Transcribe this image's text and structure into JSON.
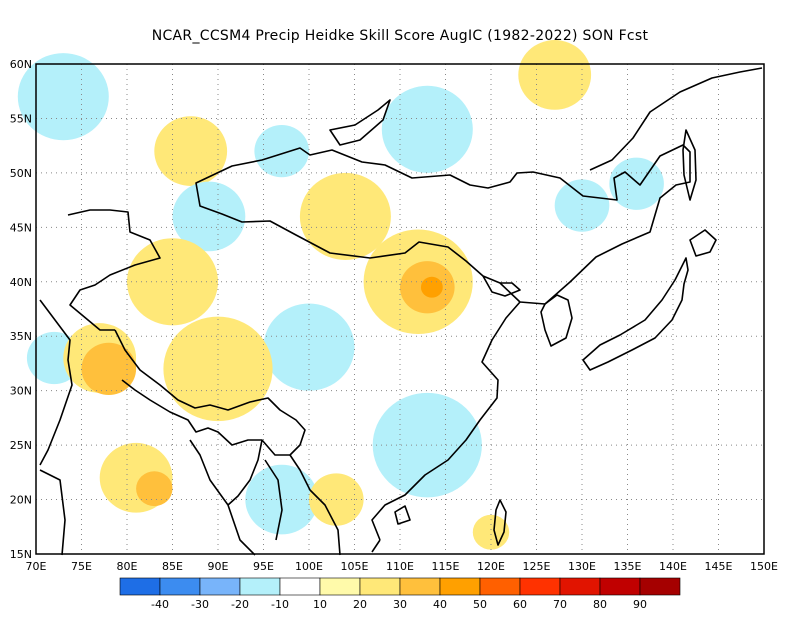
{
  "title": "NCAR_CCSM4 Precip Heidke Skill Score AugIC (1982-2022) SON Fcst",
  "map": {
    "lon_range": [
      70,
      150
    ],
    "lat_range": [
      15,
      60
    ],
    "lon_ticks": [
      "70E",
      "75E",
      "80E",
      "85E",
      "90E",
      "95E",
      "100E",
      "105E",
      "110E",
      "115E",
      "120E",
      "125E",
      "130E",
      "135E",
      "140E",
      "145E",
      "150E"
    ],
    "lat_ticks": [
      "60N",
      "55N",
      "50N",
      "45N",
      "40N",
      "35N",
      "30N",
      "25N",
      "20N",
      "15N"
    ],
    "gridlines": "dotted",
    "regions": [
      {
        "lon": 74,
        "lat": 56,
        "r": 3,
        "level": -20
      },
      {
        "lon": 73,
        "lat": 57,
        "r": 5,
        "level": -10
      },
      {
        "lon": 87,
        "lat": 52,
        "r": 4,
        "level": 20
      },
      {
        "lon": 97,
        "lat": 52,
        "r": 3,
        "level": -10
      },
      {
        "lon": 113,
        "lat": 55,
        "r": 3,
        "level": -20
      },
      {
        "lon": 113,
        "lat": 54,
        "r": 5,
        "level": -10
      },
      {
        "lon": 127,
        "lat": 59,
        "r": 4,
        "level": 20
      },
      {
        "lon": 130,
        "lat": 47,
        "r": 3,
        "level": -10
      },
      {
        "lon": 89,
        "lat": 46,
        "r": 4,
        "level": -10
      },
      {
        "lon": 104,
        "lat": 46,
        "r": 5,
        "level": 20
      },
      {
        "lon": 112,
        "lat": 40,
        "r": 6,
        "level": 20
      },
      {
        "lon": 113,
        "lat": 39.5,
        "r": 3,
        "level": 30
      },
      {
        "lon": 113.5,
        "lat": 39.5,
        "r": 1.2,
        "level": 40
      },
      {
        "lon": 85,
        "lat": 40,
        "r": 5,
        "level": 20
      },
      {
        "lon": 101,
        "lat": 34,
        "r": 3,
        "level": -20
      },
      {
        "lon": 100,
        "lat": 34,
        "r": 5,
        "level": -10
      },
      {
        "lon": 72,
        "lat": 33,
        "r": 3,
        "level": -10
      },
      {
        "lon": 77,
        "lat": 33,
        "r": 4,
        "level": 20
      },
      {
        "lon": 78,
        "lat": 32,
        "r": 3,
        "level": 30
      },
      {
        "lon": 90,
        "lat": 32,
        "r": 6,
        "level": 20
      },
      {
        "lon": 115,
        "lat": 25,
        "r": 3,
        "level": -20
      },
      {
        "lon": 113,
        "lat": 25,
        "r": 6,
        "level": -10
      },
      {
        "lon": 96,
        "lat": 20,
        "r": 2,
        "level": -20
      },
      {
        "lon": 97,
        "lat": 20,
        "r": 4,
        "level": -10
      },
      {
        "lon": 81,
        "lat": 22,
        "r": 4,
        "level": 20
      },
      {
        "lon": 83,
        "lat": 21,
        "r": 2,
        "level": 30
      },
      {
        "lon": 103,
        "lat": 20,
        "r": 3,
        "level": 20
      },
      {
        "lon": 136,
        "lat": 49,
        "r": 3,
        "level": -10
      },
      {
        "lon": 120,
        "lat": 17,
        "r": 2,
        "level": 20
      }
    ]
  },
  "colorbar": {
    "colors": [
      "#1e6ee6",
      "#3c8cf0",
      "#78b4fa",
      "#b4f0fa",
      "#ffffff",
      "#fffaaa",
      "#ffe878",
      "#ffc03c",
      "#ffa000",
      "#ff6000",
      "#ff3200",
      "#e11400",
      "#c00000",
      "#a50000"
    ],
    "labels": [
      "-40",
      "-30",
      "-20",
      "-10",
      "10",
      "20",
      "30",
      "40",
      "50",
      "60",
      "70",
      "80",
      "90"
    ]
  }
}
